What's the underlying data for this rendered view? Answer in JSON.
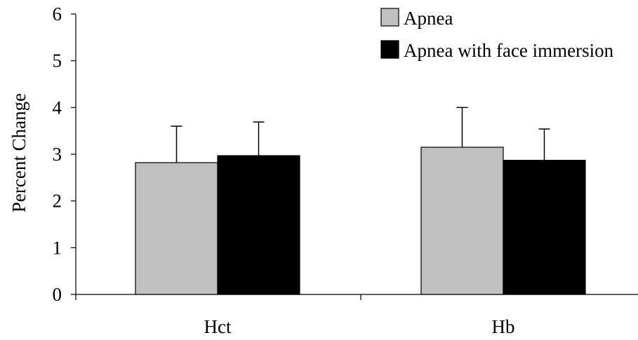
{
  "chart_data": {
    "type": "bar",
    "title": "",
    "xlabel": "",
    "ylabel": "Percent Change",
    "ylim": [
      0,
      6
    ],
    "yticks": [
      0,
      1,
      2,
      3,
      4,
      5,
      6
    ],
    "categories": [
      "Hct",
      "Hb"
    ],
    "series": [
      {
        "name": "Apnea",
        "color": "#c0c0c0",
        "values": [
          2.82,
          3.15
        ],
        "error_upper": [
          0.78,
          0.85
        ]
      },
      {
        "name": "Apnea with face immersion",
        "color": "#000000",
        "values": [
          2.97,
          2.87
        ],
        "error_upper": [
          0.72,
          0.67
        ]
      }
    ],
    "error_bars": "upper only",
    "grid": false,
    "legend_position": "top-right"
  }
}
